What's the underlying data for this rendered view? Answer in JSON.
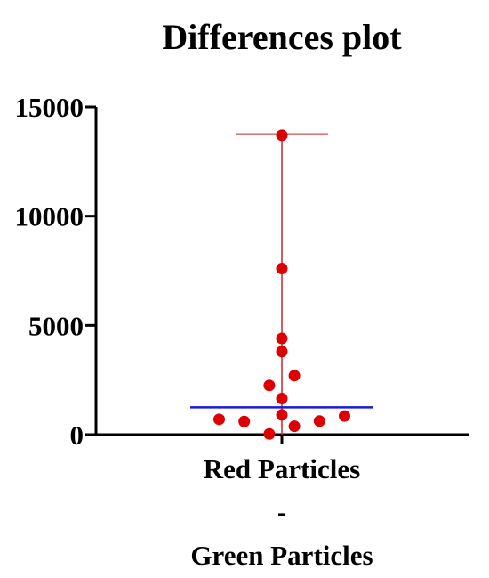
{
  "chart_data": {
    "type": "scatter",
    "title": "Differences plot",
    "xlabel": "",
    "ylabel": "",
    "category_label_lines": [
      "Red Particles",
      "-",
      "Green Particles"
    ],
    "yticks": [
      0,
      5000,
      10000,
      15000
    ],
    "ytick_labels": [
      "0",
      "5000",
      "10000",
      "15000"
    ],
    "ylim": [
      0,
      15000
    ],
    "grid": false,
    "points": [
      {
        "x": 0,
        "y": 13700
      },
      {
        "x": 0,
        "y": 7600
      },
      {
        "x": 0,
        "y": 4400
      },
      {
        "x": 0,
        "y": 3800
      },
      {
        "x": 0.5,
        "y": 2700
      },
      {
        "x": -0.5,
        "y": 2250
      },
      {
        "x": 0,
        "y": 1650
      },
      {
        "x": 0,
        "y": 900
      },
      {
        "x": 2.5,
        "y": 850
      },
      {
        "x": -2.5,
        "y": 700
      },
      {
        "x": 1.5,
        "y": 620
      },
      {
        "x": -1.5,
        "y": 600
      },
      {
        "x": 0.5,
        "y": 380
      },
      {
        "x": -0.5,
        "y": 30
      }
    ],
    "x_jitter_range": [
      -3.75,
      7.5
    ],
    "center_line": 1250,
    "whisker_top": 13750,
    "whisker_bottom": 0,
    "colors": {
      "points": "#dd0000",
      "whisker": "#c8262d",
      "center_line": "#1a1adb",
      "axis": "#000000"
    }
  }
}
